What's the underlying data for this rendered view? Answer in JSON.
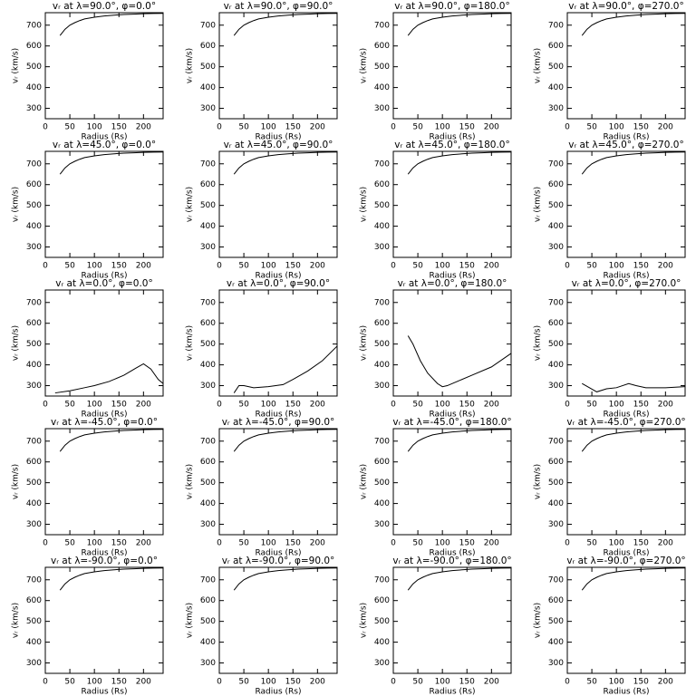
{
  "chart_data": [
    {
      "type": "line",
      "title": "vᵣ at λ=90.0°, φ=0.0°",
      "xlabel": "Radius (Rs)",
      "ylabel": "vᵣ (km/s)",
      "x": [
        30,
        40,
        50,
        60,
        70,
        80,
        100,
        120,
        140,
        160,
        180,
        200,
        220,
        240
      ],
      "values": [
        650,
        680,
        700,
        712,
        722,
        730,
        738,
        744,
        748,
        751,
        753,
        755,
        756,
        757
      ],
      "xlim": [
        0,
        240
      ],
      "ylim": [
        250,
        760
      ],
      "xticks": [
        0,
        50,
        100,
        150,
        200
      ],
      "yticks": [
        300,
        400,
        500,
        600,
        700
      ],
      "color": "#000000"
    },
    {
      "type": "line",
      "title": "vᵣ at λ=90.0°, φ=90.0°",
      "xlabel": "Radius (Rs)",
      "ylabel": "vᵣ (km/s)",
      "x": [
        30,
        40,
        50,
        60,
        70,
        80,
        100,
        120,
        140,
        160,
        180,
        200,
        220,
        240
      ],
      "values": [
        650,
        680,
        700,
        712,
        722,
        730,
        738,
        744,
        748,
        751,
        753,
        755,
        756,
        757
      ],
      "xlim": [
        0,
        240
      ],
      "ylim": [
        250,
        760
      ],
      "xticks": [
        0,
        50,
        100,
        150,
        200
      ],
      "yticks": [
        300,
        400,
        500,
        600,
        700
      ],
      "color": "#000000"
    },
    {
      "type": "line",
      "title": "vᵣ at λ=90.0°, φ=180.0°",
      "xlabel": "Radius (Rs)",
      "ylabel": "vᵣ (km/s)",
      "x": [
        30,
        40,
        50,
        60,
        70,
        80,
        100,
        120,
        140,
        160,
        180,
        200,
        220,
        240
      ],
      "values": [
        650,
        680,
        700,
        712,
        722,
        730,
        738,
        744,
        748,
        751,
        753,
        755,
        756,
        757
      ],
      "xlim": [
        0,
        240
      ],
      "ylim": [
        250,
        760
      ],
      "xticks": [
        0,
        50,
        100,
        150,
        200
      ],
      "yticks": [
        300,
        400,
        500,
        600,
        700
      ],
      "color": "#000000"
    },
    {
      "type": "line",
      "title": "vᵣ at λ=90.0°, φ=270.0°",
      "xlabel": "Radius (Rs)",
      "ylabel": "vᵣ (km/s)",
      "x": [
        30,
        40,
        50,
        60,
        70,
        80,
        100,
        120,
        140,
        160,
        180,
        200,
        220,
        240
      ],
      "values": [
        650,
        680,
        700,
        712,
        722,
        730,
        738,
        744,
        748,
        751,
        753,
        755,
        756,
        757
      ],
      "xlim": [
        0,
        240
      ],
      "ylim": [
        250,
        760
      ],
      "xticks": [
        0,
        50,
        100,
        150,
        200
      ],
      "yticks": [
        300,
        400,
        500,
        600,
        700
      ],
      "color": "#000000"
    },
    {
      "type": "line",
      "title": "vᵣ at λ=45.0°, φ=0.0°",
      "xlabel": "Radius (Rs)",
      "ylabel": "vᵣ (km/s)",
      "x": [
        30,
        40,
        50,
        60,
        70,
        80,
        100,
        120,
        140,
        160,
        180,
        200,
        220,
        240
      ],
      "values": [
        650,
        680,
        700,
        712,
        722,
        730,
        738,
        744,
        748,
        751,
        753,
        755,
        756,
        757
      ],
      "xlim": [
        0,
        240
      ],
      "ylim": [
        250,
        760
      ],
      "xticks": [
        0,
        50,
        100,
        150,
        200
      ],
      "yticks": [
        300,
        400,
        500,
        600,
        700
      ],
      "color": "#000000"
    },
    {
      "type": "line",
      "title": "vᵣ at λ=45.0°, φ=90.0°",
      "xlabel": "Radius (Rs)",
      "ylabel": "vᵣ (km/s)",
      "x": [
        30,
        40,
        50,
        60,
        70,
        80,
        100,
        120,
        140,
        160,
        180,
        200,
        220,
        240
      ],
      "values": [
        650,
        680,
        700,
        712,
        722,
        730,
        738,
        744,
        748,
        751,
        753,
        755,
        756,
        757
      ],
      "xlim": [
        0,
        240
      ],
      "ylim": [
        250,
        760
      ],
      "xticks": [
        0,
        50,
        100,
        150,
        200
      ],
      "yticks": [
        300,
        400,
        500,
        600,
        700
      ],
      "color": "#000000"
    },
    {
      "type": "line",
      "title": "vᵣ at λ=45.0°, φ=180.0°",
      "xlabel": "Radius (Rs)",
      "ylabel": "vᵣ (km/s)",
      "x": [
        30,
        40,
        50,
        60,
        70,
        80,
        100,
        120,
        140,
        160,
        180,
        200,
        220,
        240
      ],
      "values": [
        650,
        680,
        700,
        712,
        722,
        730,
        738,
        744,
        748,
        751,
        753,
        755,
        756,
        757
      ],
      "xlim": [
        0,
        240
      ],
      "ylim": [
        250,
        760
      ],
      "xticks": [
        0,
        50,
        100,
        150,
        200
      ],
      "yticks": [
        300,
        400,
        500,
        600,
        700
      ],
      "color": "#000000"
    },
    {
      "type": "line",
      "title": "vᵣ at λ=45.0°, φ=270.0°",
      "xlabel": "Radius (Rs)",
      "ylabel": "vᵣ (km/s)",
      "x": [
        30,
        40,
        50,
        60,
        70,
        80,
        100,
        120,
        140,
        160,
        180,
        200,
        220,
        240
      ],
      "values": [
        650,
        680,
        700,
        712,
        722,
        730,
        738,
        744,
        748,
        751,
        753,
        755,
        756,
        757
      ],
      "xlim": [
        0,
        240
      ],
      "ylim": [
        250,
        760
      ],
      "xticks": [
        0,
        50,
        100,
        150,
        200
      ],
      "yticks": [
        300,
        400,
        500,
        600,
        700
      ],
      "color": "#000000"
    },
    {
      "type": "line",
      "title": "vᵣ at λ=0.0°, φ=0.0°",
      "xlabel": "Radius (Rs)",
      "ylabel": "vᵣ (km/s)",
      "x": [
        20,
        50,
        80,
        100,
        130,
        160,
        185,
        200,
        215,
        230,
        240
      ],
      "values": [
        265,
        275,
        290,
        300,
        320,
        350,
        385,
        405,
        380,
        330,
        310
      ],
      "xlim": [
        0,
        240
      ],
      "ylim": [
        250,
        760
      ],
      "xticks": [
        0,
        50,
        100,
        150,
        200
      ],
      "yticks": [
        300,
        400,
        500,
        600,
        700
      ],
      "color": "#000000"
    },
    {
      "type": "line",
      "title": "vᵣ at λ=0.0°, φ=90.0°",
      "xlabel": "Radius (Rs)",
      "ylabel": "vᵣ (km/s)",
      "x": [
        30,
        40,
        50,
        70,
        100,
        130,
        150,
        180,
        210,
        240
      ],
      "values": [
        265,
        300,
        300,
        290,
        295,
        305,
        330,
        370,
        420,
        490
      ],
      "xlim": [
        0,
        240
      ],
      "ylim": [
        250,
        760
      ],
      "xticks": [
        0,
        50,
        100,
        150,
        200
      ],
      "yticks": [
        300,
        400,
        500,
        600,
        700
      ],
      "color": "#000000"
    },
    {
      "type": "line",
      "title": "vᵣ at λ=0.0°, φ=180.0°",
      "xlabel": "Radius (Rs)",
      "ylabel": "vᵣ (km/s)",
      "x": [
        30,
        40,
        55,
        70,
        90,
        100,
        110,
        130,
        160,
        200,
        240
      ],
      "values": [
        540,
        500,
        420,
        360,
        310,
        295,
        300,
        320,
        350,
        390,
        455
      ],
      "xlim": [
        0,
        240
      ],
      "ylim": [
        250,
        760
      ],
      "xticks": [
        0,
        50,
        100,
        150,
        200
      ],
      "yticks": [
        300,
        400,
        500,
        600,
        700
      ],
      "color": "#000000"
    },
    {
      "type": "line",
      "title": "vᵣ at λ=0.0°, φ=270.0°",
      "xlabel": "Radius (Rs)",
      "ylabel": "vᵣ (km/s)",
      "x": [
        30,
        45,
        60,
        80,
        100,
        125,
        140,
        160,
        200,
        240
      ],
      "values": [
        310,
        290,
        270,
        285,
        290,
        310,
        300,
        290,
        290,
        295
      ],
      "xlim": [
        0,
        240
      ],
      "ylim": [
        250,
        760
      ],
      "xticks": [
        0,
        50,
        100,
        150,
        200
      ],
      "yticks": [
        300,
        400,
        500,
        600,
        700
      ],
      "color": "#000000"
    },
    {
      "type": "line",
      "title": "vᵣ at λ=-45.0°, φ=0.0°",
      "xlabel": "Radius (Rs)",
      "ylabel": "vᵣ (km/s)",
      "x": [
        30,
        40,
        50,
        60,
        70,
        80,
        100,
        120,
        140,
        160,
        180,
        200,
        220,
        240
      ],
      "values": [
        650,
        680,
        700,
        712,
        722,
        730,
        738,
        744,
        748,
        751,
        753,
        755,
        756,
        757
      ],
      "xlim": [
        0,
        240
      ],
      "ylim": [
        250,
        760
      ],
      "xticks": [
        0,
        50,
        100,
        150,
        200
      ],
      "yticks": [
        300,
        400,
        500,
        600,
        700
      ],
      "color": "#000000"
    },
    {
      "type": "line",
      "title": "vᵣ at λ=-45.0°, φ=90.0°",
      "xlabel": "Radius (Rs)",
      "ylabel": "vᵣ (km/s)",
      "x": [
        30,
        40,
        50,
        60,
        70,
        80,
        100,
        120,
        140,
        160,
        180,
        200,
        220,
        240
      ],
      "values": [
        650,
        680,
        700,
        712,
        722,
        730,
        738,
        744,
        748,
        751,
        753,
        755,
        756,
        757
      ],
      "xlim": [
        0,
        240
      ],
      "ylim": [
        250,
        760
      ],
      "xticks": [
        0,
        50,
        100,
        150,
        200
      ],
      "yticks": [
        300,
        400,
        500,
        600,
        700
      ],
      "color": "#000000"
    },
    {
      "type": "line",
      "title": "vᵣ at λ=-45.0°, φ=180.0°",
      "xlabel": "Radius (Rs)",
      "ylabel": "vᵣ (km/s)",
      "x": [
        30,
        40,
        50,
        60,
        70,
        80,
        100,
        120,
        140,
        160,
        180,
        200,
        220,
        240
      ],
      "values": [
        650,
        680,
        700,
        712,
        722,
        730,
        738,
        744,
        748,
        751,
        753,
        755,
        756,
        757
      ],
      "xlim": [
        0,
        240
      ],
      "ylim": [
        250,
        760
      ],
      "xticks": [
        0,
        50,
        100,
        150,
        200
      ],
      "yticks": [
        300,
        400,
        500,
        600,
        700
      ],
      "color": "#000000"
    },
    {
      "type": "line",
      "title": "vᵣ at λ=-45.0°, φ=270.0°",
      "xlabel": "Radius (Rs)",
      "ylabel": "vᵣ (km/s)",
      "x": [
        30,
        40,
        50,
        60,
        70,
        80,
        100,
        120,
        140,
        160,
        180,
        200,
        220,
        240
      ],
      "values": [
        650,
        680,
        700,
        712,
        722,
        730,
        738,
        744,
        748,
        751,
        753,
        755,
        756,
        757
      ],
      "xlim": [
        0,
        240
      ],
      "ylim": [
        250,
        760
      ],
      "xticks": [
        0,
        50,
        100,
        150,
        200
      ],
      "yticks": [
        300,
        400,
        500,
        600,
        700
      ],
      "color": "#000000"
    },
    {
      "type": "line",
      "title": "vᵣ at λ=-90.0°, φ=0.0°",
      "xlabel": "Radius (Rs)",
      "ylabel": "vᵣ (km/s)",
      "x": [
        30,
        40,
        50,
        60,
        70,
        80,
        100,
        120,
        140,
        160,
        180,
        200,
        220,
        240
      ],
      "values": [
        650,
        680,
        700,
        712,
        722,
        730,
        738,
        744,
        748,
        751,
        753,
        755,
        756,
        757
      ],
      "xlim": [
        0,
        240
      ],
      "ylim": [
        250,
        760
      ],
      "xticks": [
        0,
        50,
        100,
        150,
        200
      ],
      "yticks": [
        300,
        400,
        500,
        600,
        700
      ],
      "color": "#000000"
    },
    {
      "type": "line",
      "title": "vᵣ at λ=-90.0°, φ=90.0°",
      "xlabel": "Radius (Rs)",
      "ylabel": "vᵣ (km/s)",
      "x": [
        30,
        40,
        50,
        60,
        70,
        80,
        100,
        120,
        140,
        160,
        180,
        200,
        220,
        240
      ],
      "values": [
        650,
        680,
        700,
        712,
        722,
        730,
        738,
        744,
        748,
        751,
        753,
        755,
        756,
        757
      ],
      "xlim": [
        0,
        240
      ],
      "ylim": [
        250,
        760
      ],
      "xticks": [
        0,
        50,
        100,
        150,
        200
      ],
      "yticks": [
        300,
        400,
        500,
        600,
        700
      ],
      "color": "#000000"
    },
    {
      "type": "line",
      "title": "vᵣ at λ=-90.0°, φ=180.0°",
      "xlabel": "Radius (Rs)",
      "ylabel": "vᵣ (km/s)",
      "x": [
        30,
        40,
        50,
        60,
        70,
        80,
        100,
        120,
        140,
        160,
        180,
        200,
        220,
        240
      ],
      "values": [
        650,
        680,
        700,
        712,
        722,
        730,
        738,
        744,
        748,
        751,
        753,
        755,
        756,
        757
      ],
      "xlim": [
        0,
        240
      ],
      "ylim": [
        250,
        760
      ],
      "xticks": [
        0,
        50,
        100,
        150,
        200
      ],
      "yticks": [
        300,
        400,
        500,
        600,
        700
      ],
      "color": "#000000"
    },
    {
      "type": "line",
      "title": "vᵣ at λ=-90.0°, φ=270.0°",
      "xlabel": "Radius (Rs)",
      "ylabel": "vᵣ (km/s)",
      "x": [
        30,
        40,
        50,
        60,
        70,
        80,
        100,
        120,
        140,
        160,
        180,
        200,
        220,
        240
      ],
      "values": [
        650,
        680,
        700,
        712,
        722,
        730,
        738,
        744,
        748,
        751,
        753,
        755,
        756,
        757
      ],
      "xlim": [
        0,
        240
      ],
      "ylim": [
        250,
        760
      ],
      "xticks": [
        0,
        50,
        100,
        150,
        200
      ],
      "yticks": [
        300,
        400,
        500,
        600,
        700
      ],
      "color": "#000000"
    }
  ]
}
